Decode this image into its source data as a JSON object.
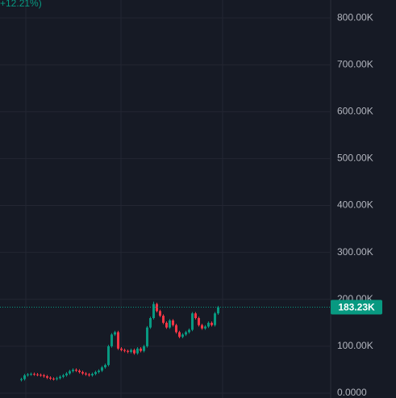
{
  "chart_data": {
    "type": "candlestick",
    "change_label": "+12.21%)",
    "open": [
      28000,
      30000,
      38000,
      40000,
      41000,
      40000,
      39000,
      38000,
      36000,
      33000,
      31000,
      30000,
      32000,
      35000,
      38000,
      42000,
      47000,
      50000,
      48000,
      45000,
      42000,
      40000,
      38000,
      41000,
      45000,
      48000,
      55000,
      60000,
      100000,
      125000,
      130000,
      95000,
      92000,
      90000,
      88000,
      92000,
      85000,
      95000,
      90000,
      100000,
      140000,
      160000,
      190000,
      175000,
      165000,
      150000,
      140000,
      155000,
      145000,
      130000,
      120000,
      125000,
      130000,
      135000,
      170000,
      160000,
      145000,
      138000,
      142000,
      150000,
      145000,
      170000
    ],
    "high": [
      33000,
      41000,
      43000,
      44000,
      44000,
      43000,
      42000,
      41000,
      39000,
      36000,
      34000,
      35000,
      38000,
      41000,
      45000,
      50000,
      53000,
      53000,
      51000,
      48000,
      45000,
      43000,
      44000,
      48000,
      51000,
      58000,
      63000,
      103000,
      128000,
      133000,
      133000,
      98000,
      95000,
      93000,
      95000,
      95000,
      98000,
      98000,
      103000,
      143000,
      163000,
      195000,
      193000,
      178000,
      168000,
      153000,
      158000,
      158000,
      148000,
      133000,
      128000,
      133000,
      138000,
      173000,
      173000,
      163000,
      148000,
      145000,
      153000,
      153000,
      173000,
      186000
    ],
    "low": [
      25000,
      27000,
      35000,
      37000,
      37000,
      36000,
      35000,
      33000,
      30000,
      28000,
      27000,
      27000,
      29000,
      32000,
      35000,
      39000,
      44000,
      45000,
      42000,
      39000,
      37000,
      35000,
      35000,
      38000,
      42000,
      45000,
      52000,
      57000,
      97000,
      122000,
      92000,
      89000,
      87000,
      85000,
      85000,
      82000,
      82000,
      87000,
      87000,
      97000,
      137000,
      157000,
      172000,
      162000,
      147000,
      137000,
      137000,
      142000,
      127000,
      117000,
      117000,
      122000,
      127000,
      132000,
      157000,
      142000,
      135000,
      135000,
      139000,
      142000,
      142000,
      167000
    ],
    "close": [
      30000,
      38000,
      40000,
      41000,
      40000,
      39000,
      38000,
      36000,
      33000,
      31000,
      30000,
      32000,
      35000,
      38000,
      42000,
      47000,
      50000,
      48000,
      45000,
      42000,
      40000,
      38000,
      41000,
      45000,
      48000,
      55000,
      60000,
      100000,
      125000,
      130000,
      95000,
      92000,
      90000,
      88000,
      92000,
      85000,
      95000,
      90000,
      100000,
      140000,
      160000,
      190000,
      175000,
      165000,
      150000,
      140000,
      155000,
      145000,
      130000,
      120000,
      125000,
      130000,
      135000,
      170000,
      160000,
      145000,
      138000,
      142000,
      150000,
      145000,
      170000,
      183230
    ],
    "up_color": "#089981",
    "down_color": "#f23645",
    "ylim": [
      -10300,
      838000
    ],
    "yticks": [
      {
        "value": 0,
        "label": "0.0000"
      },
      {
        "value": 100000,
        "label": "100.00K"
      },
      {
        "value": 200000,
        "label": "200.00K"
      },
      {
        "value": 300000,
        "label": "300.00K"
      },
      {
        "value": 400000,
        "label": "400.00K"
      },
      {
        "value": 500000,
        "label": "500.00K"
      },
      {
        "value": 600000,
        "label": "600.00K"
      },
      {
        "value": 700000,
        "label": "700.00K"
      },
      {
        "value": 800000,
        "label": "800.00K"
      }
    ],
    "grid": true,
    "last_price": {
      "value": 183230,
      "label": "183.23K"
    }
  }
}
